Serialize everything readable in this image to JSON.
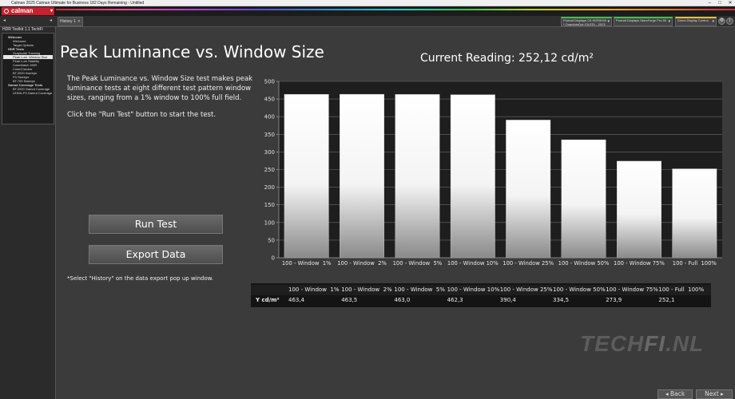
{
  "window": {
    "title": "Calman 2025 Calman Ultimate for Business 182 Days Remaining - Untitled"
  },
  "app": {
    "logo": "calman",
    "brand_color": "#c8202d"
  },
  "tabs": [
    {
      "label": "History 1"
    }
  ],
  "devices": [
    {
      "line1": "Portrait Displays C6 HDR5000",
      "line2": "* QuantumDot (OLED) - 2023"
    },
    {
      "line1": "Portrait Displays StarsForge Pro 8K",
      "line2": ""
    },
    {
      "line1": "Direct Display Control",
      "line2": ""
    }
  ],
  "sidebar": {
    "title": "HDR Toolkit 1.1 TechFi",
    "items": [
      {
        "label": "Welcome",
        "level": 0,
        "active": false
      },
      {
        "label": "Welcome",
        "level": 1,
        "active": false
      },
      {
        "label": "Target Options",
        "level": 1,
        "active": false
      },
      {
        "label": "HDR Tests",
        "level": 0,
        "active": false
      },
      {
        "label": "Grayscale Tracking",
        "level": 1,
        "active": false
      },
      {
        "label": "Peak Lum. Window Size",
        "level": 1,
        "active": true
      },
      {
        "label": "Peak Lum Stability",
        "level": 1,
        "active": false
      },
      {
        "label": "ColorMatch HDR",
        "level": 1,
        "active": false
      },
      {
        "label": "ColorChecker",
        "level": 1,
        "active": false
      },
      {
        "label": "BT.2020 Sweeps",
        "level": 1,
        "active": false
      },
      {
        "label": "P3 Sweeps",
        "level": 1,
        "active": false
      },
      {
        "label": "BT.709 Sweeps",
        "level": 1,
        "active": false
      },
      {
        "label": "Gamut Coverage Tests",
        "level": 0,
        "active": false
      },
      {
        "label": "BT.2020 Gamut Coverage",
        "level": 1,
        "active": false
      },
      {
        "label": "UHDA-P3 Gamut Coverage",
        "level": 1,
        "active": false
      }
    ]
  },
  "main": {
    "title": "Peak Luminance vs. Window Size",
    "current_reading": "Current Reading: 252,12 cd/m²",
    "description": "The Peak Luminance vs. Window Size test makes peak luminance tests at eight different test pattern window sizes, ranging from a 1% window to 100% full field.",
    "instruction": "Click the \"Run Test\" button to start the test.",
    "run_test_label": "Run Test",
    "export_label": "Export  Data",
    "note": "*Select \"History\" on the data export pop up window."
  },
  "chart_data": {
    "type": "bar",
    "categories": [
      "100 - Window  1%",
      "100 - Window  2%",
      "100 - Window  5%",
      "100 - Window 10%",
      "100 - Window 25%",
      "100 - Window 50%",
      "100 - Window 75%",
      "100 - Full  100%"
    ],
    "values": [
      463.4,
      463.5,
      463.0,
      462.3,
      390.4,
      334.5,
      273.9,
      252.1
    ],
    "ylim": [
      0,
      500
    ],
    "yticks": [
      "0",
      "50",
      "100",
      "150",
      "200",
      "250",
      "300",
      "350",
      "400",
      "450",
      "500"
    ],
    "grid": true,
    "bar_color": "#ffffff"
  },
  "table": {
    "row_label": "Y cd/m²",
    "headers": [
      "100 - Window  1%",
      "100 - Window  2%",
      "100 - Window  5%",
      "100 - Window 10%",
      "100 - Window 25%",
      "100 - Window 50%",
      "100 - Window 75%",
      "100 - Full  100%"
    ],
    "values": [
      "463,4",
      "463,5",
      "463,0",
      "462,3",
      "390,4",
      "334,5",
      "273,9",
      "252,1"
    ]
  },
  "watermark": "TECHFI.NL",
  "footer": {
    "back_label": "Back",
    "next_label": "Next"
  }
}
